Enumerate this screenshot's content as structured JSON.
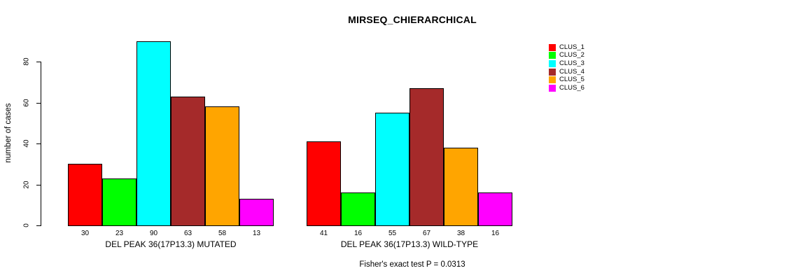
{
  "title": "MIRSEQ_CHIERARCHICAL",
  "chart_data": {
    "type": "bar",
    "title": "MIRSEQ_CHIERARCHICAL",
    "xlabel": "",
    "ylabel": "number of cases",
    "ylim": [
      0,
      90
    ],
    "yticks": [
      0,
      20,
      40,
      60,
      80
    ],
    "grid": false,
    "legend_position": "top-right",
    "categories": [
      "DEL PEAK 36(17P13.3) MUTATED",
      "DEL PEAK 36(17P13.3) WILD-TYPE"
    ],
    "series": [
      {
        "name": "CLUS_1",
        "color": "#FF0000",
        "values": [
          30,
          41
        ]
      },
      {
        "name": "CLUS_2",
        "color": "#00FF00",
        "values": [
          23,
          16
        ]
      },
      {
        "name": "CLUS_3",
        "color": "#00FFFF",
        "values": [
          90,
          55
        ]
      },
      {
        "name": "CLUS_4",
        "color": "#A52A2A",
        "values": [
          63,
          67
        ]
      },
      {
        "name": "CLUS_5",
        "color": "#FFA500",
        "values": [
          58,
          38
        ]
      },
      {
        "name": "CLUS_6",
        "color": "#FF00FF",
        "values": [
          13,
          16
        ]
      }
    ],
    "bar_value_labels": {
      "group1": [
        30,
        23,
        90,
        63,
        58,
        13
      ],
      "group2": [
        41,
        16,
        55,
        67,
        38,
        16
      ]
    },
    "annotation": "Fisher's exact test P = 0.0313",
    "background_color": "#FFFFFF",
    "text_color": "#000000",
    "bar_border_color": "#000000"
  }
}
